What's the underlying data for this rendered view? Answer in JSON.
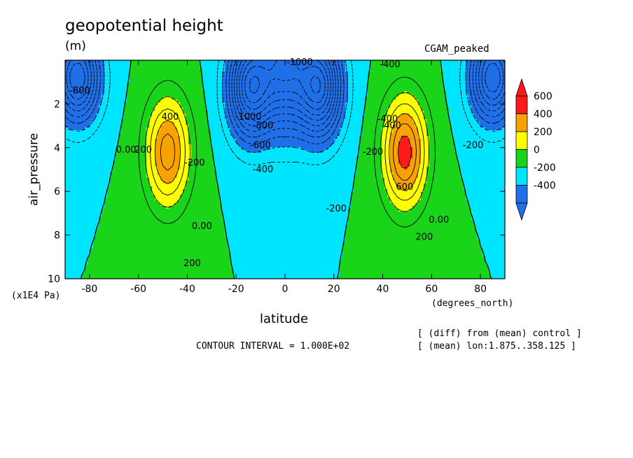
{
  "header": {
    "title": "geopotential height",
    "units": "(m)",
    "case": "CGAM_peaked"
  },
  "footer": {
    "xlabel": "latitude",
    "xunits": "(degrees_north)",
    "yunits": "(x1E4 Pa)",
    "contour_interval": "CONTOUR INTERVAL = 1.000E+02",
    "note_line1": "[ (diff) from (mean) control ]",
    "note_line2": "[ (mean) lon:1.875..358.125 ]"
  },
  "chart_data": {
    "type": "heatmap",
    "title": "geopotential height",
    "units": "(m)",
    "case_label": "CGAM_peaked",
    "xlabel": "latitude",
    "ylabel": "air_pressure",
    "xlim": [
      -90,
      90
    ],
    "ylim": [
      10,
      0
    ],
    "x_ticks": [
      -80,
      -60,
      -40,
      -20,
      0,
      20,
      40,
      60,
      80
    ],
    "x_tick_labels": [
      "-80",
      "-60",
      "-40",
      "-20",
      "0",
      "20",
      "40",
      "60",
      "80"
    ],
    "y_ticks": [
      2,
      4,
      6,
      8,
      10
    ],
    "y_tick_labels": [
      "2",
      "4",
      "6",
      "8",
      "10"
    ],
    "contour_interval": 100,
    "colorbar": {
      "levels": [
        -400,
        -200,
        0,
        200,
        400,
        600
      ],
      "labels": [
        "600",
        "400",
        "200",
        "0",
        "-200",
        "-400"
      ],
      "colors": [
        "#1f6fe8",
        "#00e5ff",
        "#19d419",
        "#ffff00",
        "#f7a200",
        "#ff1a1a"
      ]
    },
    "features": [
      {
        "kind": "max",
        "lat": -48,
        "p": 4.2,
        "value": 560,
        "amp_p": 2.5
      },
      {
        "kind": "max",
        "lat": 49,
        "p": 4.2,
        "value": 660,
        "amp_p": 2.5
      },
      {
        "kind": "min",
        "lat": -14,
        "p": 1.2,
        "value": -1050,
        "amp_p": 2.3
      },
      {
        "kind": "min",
        "lat": 14,
        "p": 1.2,
        "value": -1050,
        "amp_p": 2.3
      },
      {
        "kind": "min",
        "lat": 0,
        "p": 0,
        "value": -900,
        "amp_p": 3.0
      },
      {
        "kind": "min",
        "lat": -85,
        "p": 0.8,
        "value": -900,
        "amp_p": 2.0
      },
      {
        "kind": "min",
        "lat": 85,
        "p": 0.8,
        "value": -900,
        "amp_p": 2.0
      }
    ],
    "contour_labels": [
      {
        "text": "-1000",
        "lat": 6,
        "p": 0.1
      },
      {
        "text": "-1000",
        "lat": -15,
        "p": 2.6
      },
      {
        "text": "-800",
        "lat": -84,
        "p": 1.4
      },
      {
        "text": "-800",
        "lat": -9,
        "p": 3.0
      },
      {
        "text": "-600",
        "lat": -10,
        "p": 3.9
      },
      {
        "text": "-400",
        "lat": -9,
        "p": 5.0
      },
      {
        "text": "-400",
        "lat": 43,
        "p": 0.2
      },
      {
        "text": "-400",
        "lat": 42,
        "p": 2.7
      },
      {
        "text": "-200",
        "lat": -37,
        "p": 4.7
      },
      {
        "text": "-200",
        "lat": 21,
        "p": 6.8
      },
      {
        "text": "-200",
        "lat": 36,
        "p": 4.2
      },
      {
        "text": "-200",
        "lat": 77,
        "p": 3.9
      },
      {
        "text": "0.00",
        "lat": -65,
        "p": 4.1
      },
      {
        "text": "0.00",
        "lat": -34,
        "p": 7.6
      },
      {
        "text": "0.00",
        "lat": 63,
        "p": 7.3
      },
      {
        "text": "200",
        "lat": -58,
        "p": 4.1
      },
      {
        "text": "200",
        "lat": -38,
        "p": 9.3
      },
      {
        "text": "200",
        "lat": 57,
        "p": 8.1
      },
      {
        "text": "400",
        "lat": -47,
        "p": 2.6
      },
      {
        "text": "400",
        "lat": 44,
        "p": 3.0
      },
      {
        "text": "600",
        "lat": 49,
        "p": 5.8
      }
    ]
  }
}
